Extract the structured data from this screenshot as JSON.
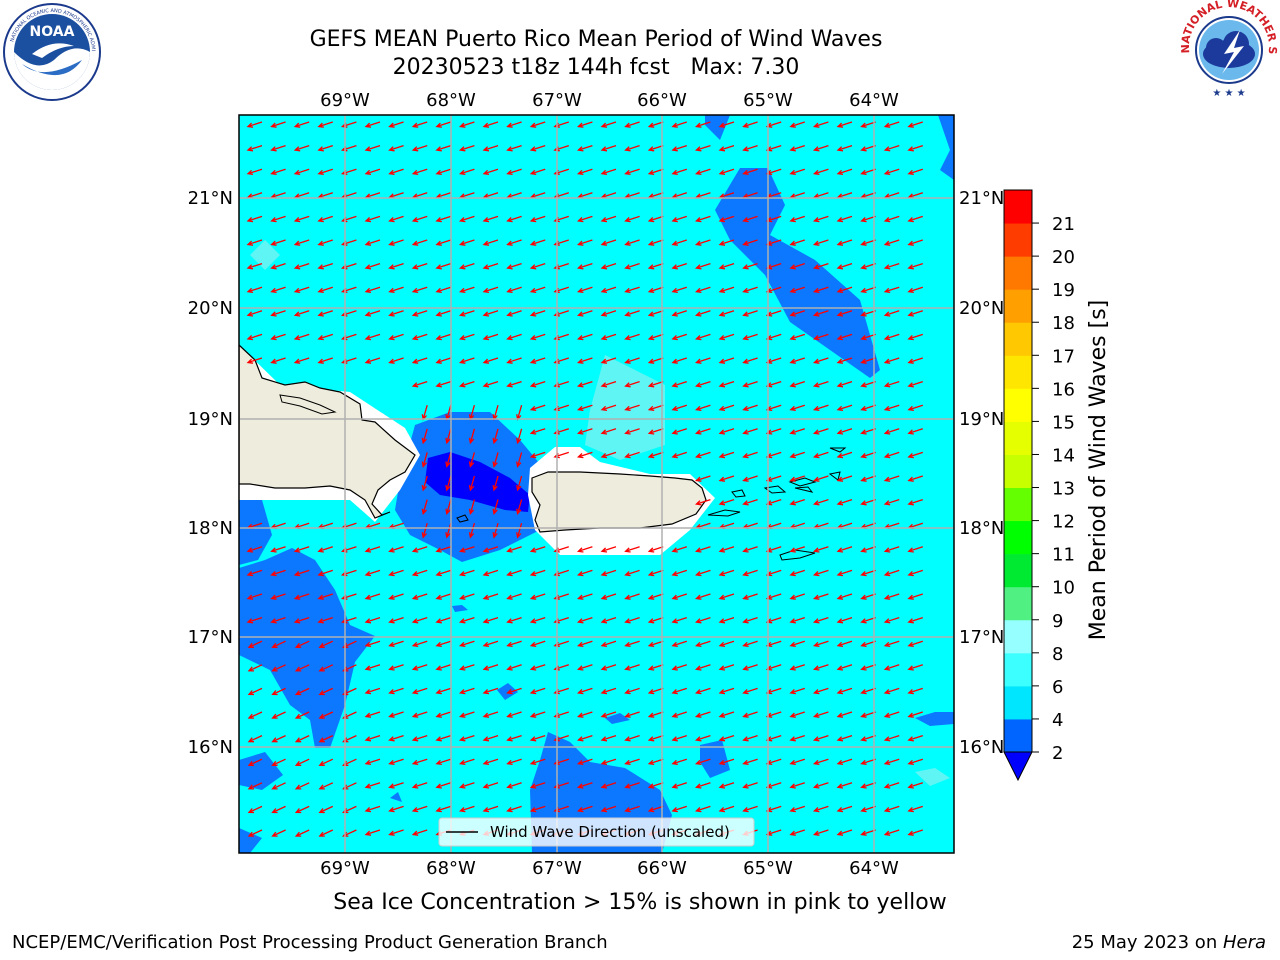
{
  "title": {
    "line1": "GEFS MEAN Puerto Rico Mean Period of Wind Waves",
    "line2": "20230523 t18z 144h fcst   Max: 7.30"
  },
  "map": {
    "lon_labels": [
      "69°W",
      "68°W",
      "67°W",
      "66°W",
      "65°W",
      "64°W"
    ],
    "lat_labels": [
      "21°N",
      "20°N",
      "19°N",
      "18°N",
      "17°N",
      "16°N"
    ],
    "lon_range": [
      -70.0,
      -63.25
    ],
    "lat_range": [
      15.0,
      21.75
    ],
    "legend_label": "Wind Wave Direction (unscaled)",
    "arrow_color": "#ff0000",
    "land_color": "#eeecdc",
    "ocean_color": "#00ffff"
  },
  "colorbar": {
    "label": "Mean Period of Wind Waves [s]",
    "ticks": [
      "2",
      "4",
      "6",
      "8",
      "9",
      "10",
      "11",
      "12",
      "13",
      "14",
      "15",
      "16",
      "17",
      "18",
      "19",
      "20",
      "21"
    ],
    "colors": [
      "#0064ff",
      "#00e6ff",
      "#3cffff",
      "#96ffff",
      "#50f082",
      "#00ea32",
      "#00ff00",
      "#64ff00",
      "#c8ff00",
      "#e6ff00",
      "#ffff00",
      "#ffe600",
      "#ffc800",
      "#ffa000",
      "#ff7800",
      "#ff3c00",
      "#ff0000"
    ],
    "under_color": "#0000ff"
  },
  "caption": "Sea Ice Concentration > 15% is shown in pink to yellow",
  "footer": {
    "left": "NCEP/EMC/Verification Post Processing Product Generation Branch",
    "date": "25 May 2023 on ",
    "machine": "Hera"
  },
  "logos": {
    "noaa": "NOAA",
    "nws": "NATIONAL WEATHER SERVICE"
  }
}
